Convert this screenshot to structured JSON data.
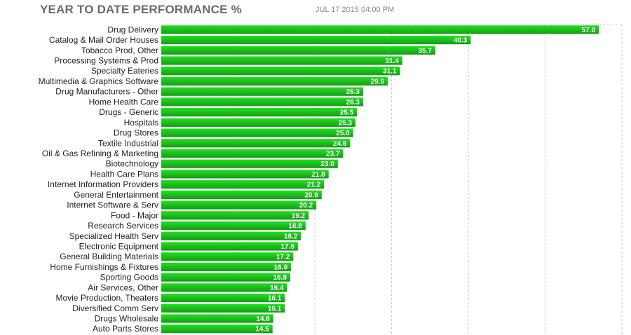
{
  "header": {
    "title": "YEAR TO DATE PERFORMANCE %",
    "timestamp": "JUL 17 2015 04:00 PM"
  },
  "colors": {
    "bar_top": "#21e021",
    "bar_bottom": "#169c16",
    "grid": "#c8c8c8",
    "label_text": "#222222",
    "value_text": "#ffffff"
  },
  "chart_data": {
    "type": "bar",
    "orientation": "horizontal",
    "title": "YEAR TO DATE PERFORMANCE %",
    "xlabel": "",
    "ylabel": "",
    "xlim": [
      0,
      60
    ],
    "grid": "vertical dashed",
    "categories": [
      "Drug Delivery",
      "Catalog & Mail Order Houses",
      "Tobacco Prod, Other",
      "Processing Systems & Prod",
      "Specialty Eateries",
      "Multimedia & Graphics Software",
      "Drug Manufacturers - Other",
      "Home Health Care",
      "Drugs - Generic",
      "Hospitals",
      "Drug Stores",
      "Textile Industrial",
      "Oil & Gas Refining & Marketing",
      "Biotechnology",
      "Health Care Plans",
      "Internet Information Providers",
      "General Entertainment",
      "Internet Software & Serv",
      "Food - Major",
      "Research Services",
      "Specialized Health Serv",
      "Electronic Equipment",
      "General Building Materials",
      "Home Furnishings & Fixtures",
      "Sporting Goods",
      "Air Services, Other",
      "Movie Production, Theaters",
      "Diversified Comm Serv",
      "Drugs Wholesale",
      "Auto Parts Stores"
    ],
    "values": [
      57.0,
      40.3,
      35.7,
      31.4,
      31.1,
      29.5,
      26.3,
      26.3,
      25.5,
      25.3,
      25.0,
      24.6,
      23.7,
      23.0,
      21.8,
      21.2,
      20.9,
      20.2,
      19.2,
      18.8,
      18.2,
      17.8,
      17.2,
      16.9,
      16.8,
      16.4,
      16.1,
      16.1,
      14.6,
      14.5
    ],
    "value_labels": [
      "57.0",
      "40.3",
      "35.7",
      "31.4",
      "31.1",
      "29.5",
      "26.3",
      "26.3",
      "25.5",
      "25.3",
      "25.0",
      "24.6",
      "23.7",
      "23.0",
      "21.8",
      "21.2",
      "20.9",
      "20.2",
      "19.2",
      "18.8",
      "18.2",
      "17.8",
      "17.2",
      "16.9",
      "16.8",
      "16.4",
      "16.1",
      "16.1",
      "14.6",
      "14.5"
    ]
  }
}
